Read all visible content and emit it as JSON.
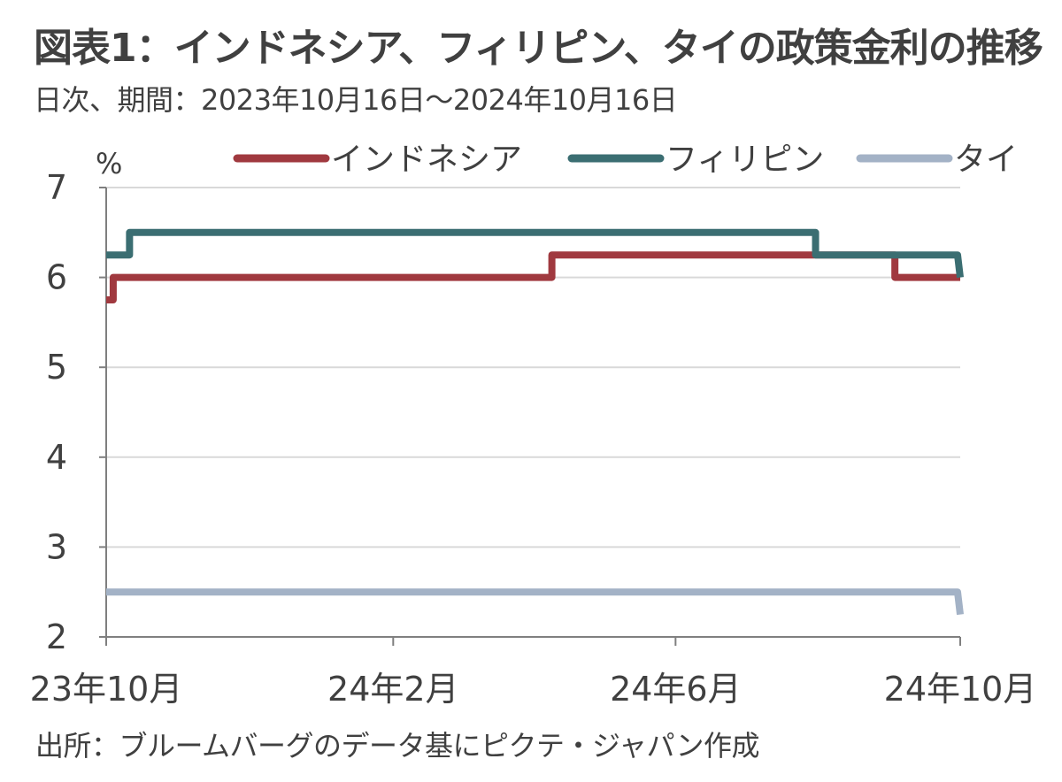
{
  "header": {
    "title": "図表1：インドネシア、フィリピン、タイの政策金利の推移",
    "subtitle": "日次、期間：2023年10月16日～2024年10月16日"
  },
  "footer": {
    "source": "出所：ブルームバーグのデータ基にピクテ・ジャパン作成"
  },
  "colors": {
    "indonesia": "#a0393f",
    "philippines": "#3b6e72",
    "thailand": "#a3b2c6",
    "grid": "#d9d9d9",
    "axis": "#7f7f7f"
  },
  "chart_data": {
    "type": "line",
    "ylabel": "%",
    "ylim": [
      2,
      7
    ],
    "yticks": [
      "2",
      "3",
      "4",
      "5",
      "6",
      "7"
    ],
    "yticks_values": [
      2,
      3,
      4,
      5,
      6,
      7
    ],
    "xlim": [
      "2023-10-16",
      "2024-10-16"
    ],
    "xticks": [
      {
        "date": "2023-10-16",
        "label": "23年10月"
      },
      {
        "date": "2024-02-16",
        "label": "24年2月"
      },
      {
        "date": "2024-06-16",
        "label": "24年6月"
      },
      {
        "date": "2024-10-16",
        "label": "24年10月"
      }
    ],
    "grid": true,
    "legend": "top",
    "series": [
      {
        "name": "インドネシア",
        "color_key": "indonesia",
        "step": true,
        "points": [
          {
            "x": "2023-10-16",
            "y": 5.75
          },
          {
            "x": "2023-10-19",
            "y": 6.0
          },
          {
            "x": "2024-04-24",
            "y": 6.25
          },
          {
            "x": "2024-09-18",
            "y": 6.0
          },
          {
            "x": "2024-10-16",
            "y": 6.0
          }
        ]
      },
      {
        "name": "フィリピン",
        "color_key": "philippines",
        "step": true,
        "points": [
          {
            "x": "2023-10-16",
            "y": 6.25
          },
          {
            "x": "2023-10-26",
            "y": 6.5
          },
          {
            "x": "2024-08-15",
            "y": 6.25
          },
          {
            "x": "2024-10-16",
            "y": 6.0
          }
        ]
      },
      {
        "name": "タイ",
        "color_key": "thailand",
        "step": true,
        "points": [
          {
            "x": "2023-10-16",
            "y": 2.5
          },
          {
            "x": "2024-10-16",
            "y": 2.25
          }
        ]
      }
    ]
  }
}
